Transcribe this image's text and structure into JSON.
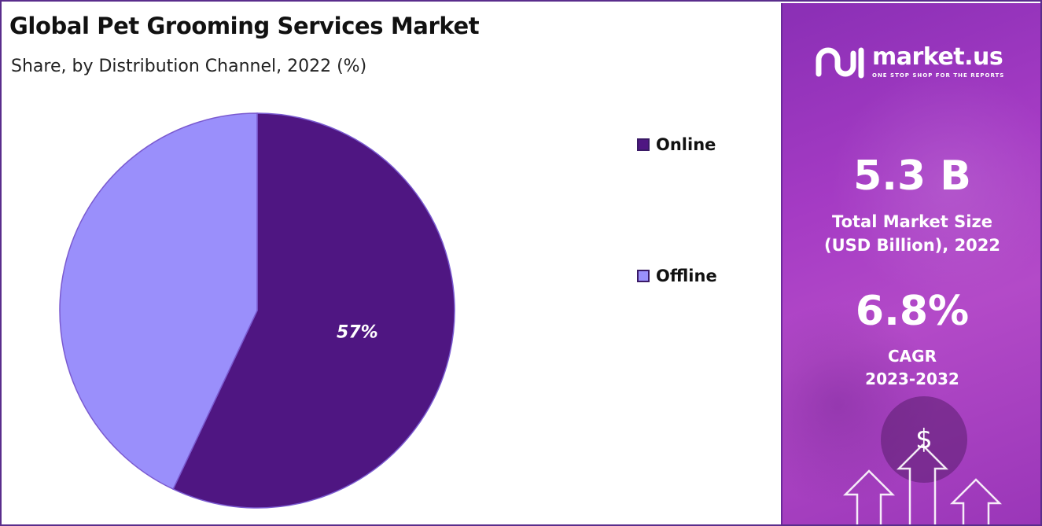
{
  "title": "Global Pet Grooming Services Market",
  "subtitle": "Share, by Distribution Channel, 2022 (%)",
  "chart_data": {
    "type": "pie",
    "categories": [
      "Online",
      "Offline"
    ],
    "values": [
      57,
      43
    ],
    "colors": [
      "#4f1682",
      "#9a8ffb"
    ],
    "data_labels": [
      "57%",
      ""
    ],
    "legend_placement": "right",
    "start_angle_deg": 0,
    "direction": "clockwise"
  },
  "legend": {
    "items": [
      {
        "label": "Online",
        "color": "#4f1682"
      },
      {
        "label": "Offline",
        "color": "#9a8ffb"
      }
    ]
  },
  "side_panel": {
    "brand_name": "market.us",
    "brand_tagline": "ONE STOP SHOP FOR THE REPORTS",
    "market_size_value": "5.3 B",
    "market_size_label_line1": "Total Market Size",
    "market_size_label_line2": "(USD Billion), 2022",
    "cagr_value": "6.8%",
    "cagr_label_line1": "CAGR",
    "cagr_label_line2": "2023-2032",
    "dollar_symbol": "$",
    "accent_color": "#a53bc4",
    "decor_icons": [
      "logo-mark-icon",
      "dollar-icon",
      "up-arrow-icon"
    ]
  }
}
